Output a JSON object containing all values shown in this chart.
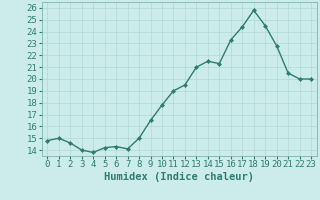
{
  "x": [
    0,
    1,
    2,
    3,
    4,
    5,
    6,
    7,
    8,
    9,
    10,
    11,
    12,
    13,
    14,
    15,
    16,
    17,
    18,
    19,
    20,
    21,
    22,
    23
  ],
  "y": [
    14.8,
    15.0,
    14.6,
    14.0,
    13.8,
    14.2,
    14.3,
    14.1,
    15.0,
    16.5,
    17.8,
    19.0,
    19.5,
    21.0,
    21.5,
    21.3,
    23.3,
    24.4,
    25.8,
    24.5,
    22.8,
    20.5,
    20.0,
    20.0
  ],
  "line_color": "#2e7d6e",
  "marker": "D",
  "marker_size": 2.0,
  "line_width": 1.0,
  "xlabel": "Humidex (Indice chaleur)",
  "ylabel_ticks": [
    14,
    15,
    16,
    17,
    18,
    19,
    20,
    21,
    22,
    23,
    24,
    25,
    26
  ],
  "ylim": [
    13.5,
    26.5
  ],
  "xlim": [
    -0.5,
    23.5
  ],
  "background_color": "#ccecea",
  "grid_color": "#b0d8d5",
  "xlabel_fontsize": 7.5,
  "tick_fontsize": 6.5
}
